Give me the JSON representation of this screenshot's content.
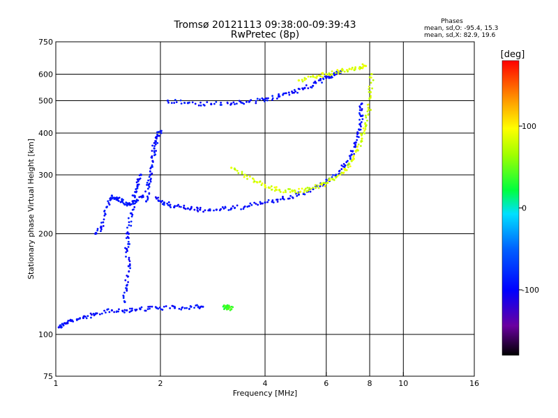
{
  "chart_data": {
    "type": "scatter",
    "title": "Tromsø 20121113 09:38:00-09:39:43",
    "subtitle": "RwPretec (8p)",
    "xlabel": "Frequency [MHz]",
    "ylabel": "Stationary phase Virtual Height [km]",
    "x_scale": "log",
    "y_scale": "log",
    "xlim": [
      1,
      16
    ],
    "ylim": [
      75,
      750
    ],
    "x_ticks": [
      1,
      2,
      4,
      6,
      8,
      10,
      16
    ],
    "y_ticks": [
      75,
      100,
      200,
      300,
      400,
      500,
      600,
      750
    ],
    "grid": true,
    "stats": {
      "title": "Phases",
      "line1": "mean, sd,O: -95.4, 15.3",
      "line2": "mean, sd,X:  82.9, 19.6"
    },
    "colorbar": {
      "label": "[deg]",
      "range": [
        -180,
        180
      ],
      "ticks": [
        {
          "value": 100,
          "label": "100"
        },
        {
          "value": 0,
          "label": "0"
        },
        {
          "value": -100,
          "label": "-100"
        }
      ]
    },
    "series": [
      {
        "name": "O-mode (blue)",
        "phase": -95,
        "traces": [
          {
            "x": [
              1.02,
              1.05,
              1.1,
              1.2,
              1.3,
              1.45,
              1.6,
              1.75,
              1.95,
              2.2,
              2.45,
              2.65
            ],
            "y": [
              105,
              107,
              110,
              112,
              115,
              118,
              118,
              119,
              120,
              120,
              121,
              121
            ]
          },
          {
            "x": [
              1.58,
              1.6,
              1.62,
              1.6,
              1.62,
              1.65,
              1.68,
              1.72,
              1.76
            ],
            "y": [
              125,
              140,
              160,
              180,
              200,
              230,
              260,
              280,
              300
            ]
          },
          {
            "x": [
              1.82,
              1.85,
              1.87,
              1.9,
              1.92,
              1.95,
              2.0
            ],
            "y": [
              250,
              280,
              300,
              330,
              360,
              390,
              405
            ]
          },
          {
            "x": [
              1.95,
              2.05,
              2.2,
              2.4,
              2.6,
              2.9,
              3.2,
              3.6,
              4.0,
              4.5,
              5.0,
              5.5,
              6.0,
              6.4,
              6.8,
              7.1,
              7.3,
              7.45,
              7.55,
              7.6
            ],
            "y": [
              255,
              248,
              242,
              238,
              236,
              236,
              238,
              242,
              248,
              255,
              262,
              272,
              285,
              300,
              320,
              345,
              375,
              410,
              450,
              490
            ]
          },
          {
            "x": [
              2.1,
              2.4,
              2.8,
              3.2,
              3.6,
              4.0,
              4.4,
              4.8,
              5.2,
              5.6,
              6.0,
              6.3,
              6.6
            ],
            "y": [
              500,
              492,
              488,
              490,
              496,
              505,
              515,
              528,
              545,
              565,
              585,
              600,
              612
            ]
          },
          {
            "x": [
              1.3,
              1.35,
              1.4,
              1.45,
              1.5,
              1.55,
              1.62,
              1.7,
              1.78
            ],
            "y": [
              200,
              210,
              240,
              260,
              255,
              250,
              245,
              250,
              260
            ]
          }
        ]
      },
      {
        "name": "X-mode (yellow)",
        "phase": 83,
        "traces": [
          {
            "x": [
              3.2,
              3.5,
              3.8,
              4.1,
              4.4,
              4.8,
              5.2,
              5.6,
              6.0,
              6.4,
              6.8,
              7.1,
              7.4,
              7.6,
              7.8,
              7.95,
              8.05,
              8.1
            ],
            "y": [
              315,
              300,
              285,
              275,
              270,
              268,
              270,
              275,
              283,
              295,
              310,
              330,
              355,
              385,
              420,
              470,
              530,
              600
            ]
          },
          {
            "x": [
              5.0,
              5.5,
              6.0,
              6.5,
              7.0,
              7.5,
              7.8
            ],
            "y": [
              575,
              590,
              600,
              612,
              622,
              630,
              635
            ]
          }
        ]
      },
      {
        "name": "scattered (green/cyan/red)",
        "phase": 40,
        "traces": [
          {
            "x": [
              3.05,
              3.1,
              3.15,
              3.2
            ],
            "y": [
              122,
              120,
              121,
              119
            ]
          }
        ]
      }
    ]
  }
}
